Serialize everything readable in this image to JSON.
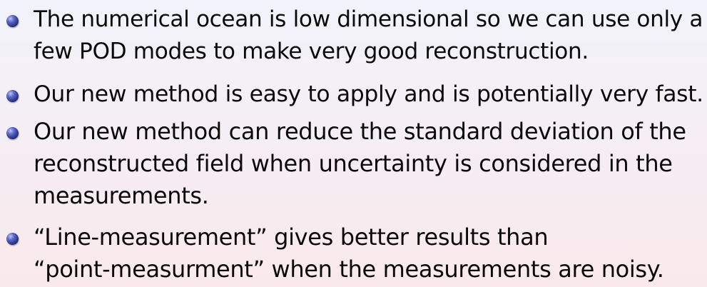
{
  "slide": {
    "bullets": [
      {
        "lines": [
          "The numerical ocean is low dimensional so we can use only a",
          "few POD modes to make very good reconstruction."
        ]
      },
      {
        "lines": [
          "Our new method is easy to apply and is potentially very fast."
        ]
      },
      {
        "lines": [
          "Our new method can reduce the standard deviation of the",
          "reconstructed field when uncertainty is considered in the",
          "measurements."
        ]
      },
      {
        "lines": [
          "“Line-measurement” gives better results than",
          "“point-measurment” when the measurements are noisy."
        ]
      }
    ],
    "bullet_color": "#27318a",
    "background_top_color": "#f2f3fb",
    "background_bottom_color": "#fae9ec"
  }
}
